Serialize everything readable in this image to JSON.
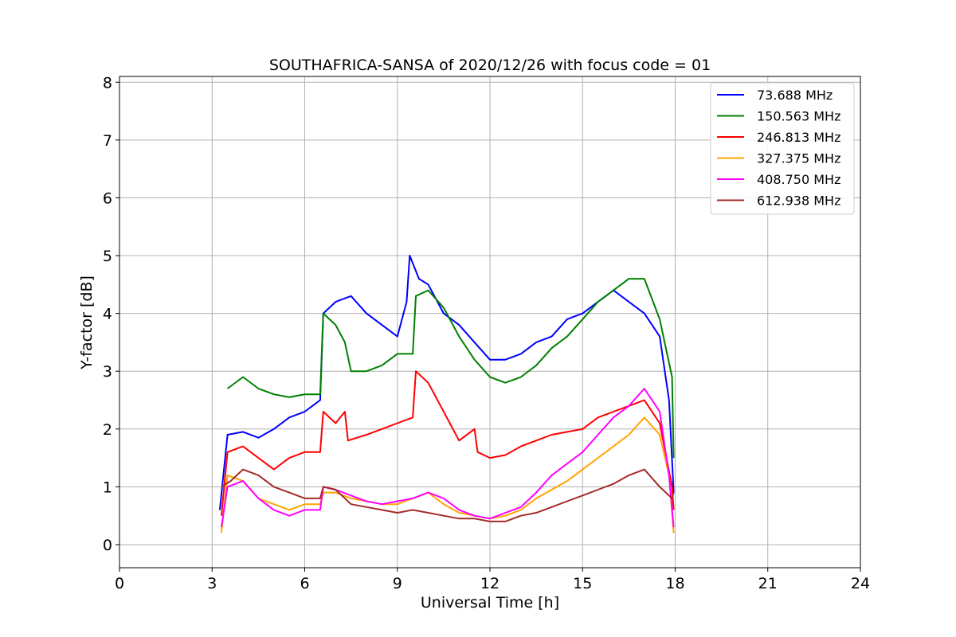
{
  "chart_data": {
    "type": "line",
    "title": "SOUTHAFRICA-SANSA of 2020/12/26 with focus code = 01",
    "xlabel": "Universal Time [h]",
    "ylabel": "Y-factor [dB]",
    "xlim": [
      0,
      24
    ],
    "ylim": [
      -0.4,
      8.1
    ],
    "xticks": [
      0,
      3,
      6,
      9,
      12,
      15,
      18,
      21,
      24
    ],
    "yticks": [
      0,
      1,
      2,
      3,
      4,
      5,
      6,
      7,
      8
    ],
    "grid": true,
    "legend_position": "top-right",
    "series": [
      {
        "name": "73.688 MHz",
        "color": "#0000ff",
        "points": [
          [
            3.25,
            0.6
          ],
          [
            3.5,
            1.9
          ],
          [
            4.0,
            1.95
          ],
          [
            4.5,
            1.85
          ],
          [
            5.0,
            2.0
          ],
          [
            5.5,
            2.2
          ],
          [
            6.0,
            2.3
          ],
          [
            6.5,
            2.5
          ],
          [
            6.6,
            4.0
          ],
          [
            7.0,
            4.2
          ],
          [
            7.5,
            4.3
          ],
          [
            8.0,
            4.0
          ],
          [
            8.5,
            3.8
          ],
          [
            9.0,
            3.6
          ],
          [
            9.3,
            4.2
          ],
          [
            9.4,
            5.0
          ],
          [
            9.7,
            4.6
          ],
          [
            10.0,
            4.5
          ],
          [
            10.5,
            4.0
          ],
          [
            11.0,
            3.8
          ],
          [
            11.5,
            3.5
          ],
          [
            12.0,
            3.2
          ],
          [
            12.5,
            3.2
          ],
          [
            13.0,
            3.3
          ],
          [
            13.5,
            3.5
          ],
          [
            14.0,
            3.6
          ],
          [
            14.5,
            3.9
          ],
          [
            15.0,
            4.0
          ],
          [
            15.5,
            4.2
          ],
          [
            16.0,
            4.4
          ],
          [
            16.5,
            4.2
          ],
          [
            17.0,
            4.0
          ],
          [
            17.5,
            3.6
          ],
          [
            17.8,
            2.5
          ],
          [
            17.95,
            0.9
          ]
        ]
      },
      {
        "name": "150.563 MHz",
        "color": "#008000",
        "points": [
          [
            3.5,
            2.7
          ],
          [
            4.0,
            2.9
          ],
          [
            4.5,
            2.7
          ],
          [
            5.0,
            2.6
          ],
          [
            5.5,
            2.55
          ],
          [
            6.0,
            2.6
          ],
          [
            6.5,
            2.6
          ],
          [
            6.6,
            4.0
          ],
          [
            7.0,
            3.8
          ],
          [
            7.3,
            3.5
          ],
          [
            7.5,
            3.0
          ],
          [
            8.0,
            3.0
          ],
          [
            8.5,
            3.1
          ],
          [
            9.0,
            3.3
          ],
          [
            9.5,
            3.3
          ],
          [
            9.6,
            4.3
          ],
          [
            10.0,
            4.4
          ],
          [
            10.5,
            4.1
          ],
          [
            11.0,
            3.6
          ],
          [
            11.5,
            3.2
          ],
          [
            12.0,
            2.9
          ],
          [
            12.5,
            2.8
          ],
          [
            13.0,
            2.9
          ],
          [
            13.5,
            3.1
          ],
          [
            14.0,
            3.4
          ],
          [
            14.5,
            3.6
          ],
          [
            15.0,
            3.9
          ],
          [
            15.5,
            4.2
          ],
          [
            16.0,
            4.4
          ],
          [
            16.5,
            4.6
          ],
          [
            17.0,
            4.6
          ],
          [
            17.5,
            3.9
          ],
          [
            17.9,
            2.9
          ],
          [
            17.95,
            1.5
          ]
        ]
      },
      {
        "name": "246.813 MHz",
        "color": "#ff0000",
        "points": [
          [
            3.3,
            0.5
          ],
          [
            3.5,
            1.6
          ],
          [
            4.0,
            1.7
          ],
          [
            4.5,
            1.5
          ],
          [
            5.0,
            1.3
          ],
          [
            5.5,
            1.5
          ],
          [
            6.0,
            1.6
          ],
          [
            6.5,
            1.6
          ],
          [
            6.6,
            2.3
          ],
          [
            7.0,
            2.1
          ],
          [
            7.3,
            2.3
          ],
          [
            7.4,
            1.8
          ],
          [
            8.0,
            1.9
          ],
          [
            8.5,
            2.0
          ],
          [
            9.0,
            2.1
          ],
          [
            9.5,
            2.2
          ],
          [
            9.6,
            3.0
          ],
          [
            10.0,
            2.8
          ],
          [
            10.5,
            2.3
          ],
          [
            11.0,
            1.8
          ],
          [
            11.5,
            2.0
          ],
          [
            11.6,
            1.6
          ],
          [
            12.0,
            1.5
          ],
          [
            12.5,
            1.55
          ],
          [
            13.0,
            1.7
          ],
          [
            13.5,
            1.8
          ],
          [
            14.0,
            1.9
          ],
          [
            14.5,
            1.95
          ],
          [
            15.0,
            2.0
          ],
          [
            15.5,
            2.2
          ],
          [
            16.0,
            2.3
          ],
          [
            16.5,
            2.4
          ],
          [
            17.0,
            2.5
          ],
          [
            17.5,
            2.1
          ],
          [
            17.9,
            1.0
          ],
          [
            17.95,
            0.6
          ]
        ]
      },
      {
        "name": "327.375 MHz",
        "color": "#ffa500",
        "points": [
          [
            3.3,
            0.2
          ],
          [
            3.5,
            1.2
          ],
          [
            4.0,
            1.1
          ],
          [
            4.5,
            0.8
          ],
          [
            5.0,
            0.7
          ],
          [
            5.5,
            0.6
          ],
          [
            6.0,
            0.7
          ],
          [
            6.5,
            0.7
          ],
          [
            6.6,
            0.9
          ],
          [
            7.0,
            0.9
          ],
          [
            7.5,
            0.8
          ],
          [
            8.0,
            0.75
          ],
          [
            8.5,
            0.7
          ],
          [
            9.0,
            0.7
          ],
          [
            9.5,
            0.8
          ],
          [
            10.0,
            0.9
          ],
          [
            10.5,
            0.7
          ],
          [
            11.0,
            0.55
          ],
          [
            11.5,
            0.5
          ],
          [
            12.0,
            0.45
          ],
          [
            12.5,
            0.5
          ],
          [
            13.0,
            0.6
          ],
          [
            13.5,
            0.8
          ],
          [
            14.0,
            0.95
          ],
          [
            14.5,
            1.1
          ],
          [
            15.0,
            1.3
          ],
          [
            15.5,
            1.5
          ],
          [
            16.0,
            1.7
          ],
          [
            16.5,
            1.9
          ],
          [
            17.0,
            2.2
          ],
          [
            17.5,
            1.9
          ],
          [
            17.8,
            1.2
          ],
          [
            17.95,
            0.2
          ]
        ]
      },
      {
        "name": "408.750 MHz",
        "color": "#ff00ff",
        "points": [
          [
            3.3,
            0.3
          ],
          [
            3.5,
            1.0
          ],
          [
            4.0,
            1.1
          ],
          [
            4.5,
            0.8
          ],
          [
            5.0,
            0.6
          ],
          [
            5.5,
            0.5
          ],
          [
            6.0,
            0.6
          ],
          [
            6.5,
            0.6
          ],
          [
            6.6,
            1.0
          ],
          [
            7.0,
            0.95
          ],
          [
            7.5,
            0.85
          ],
          [
            8.0,
            0.75
          ],
          [
            8.5,
            0.7
          ],
          [
            9.0,
            0.75
          ],
          [
            9.5,
            0.8
          ],
          [
            10.0,
            0.9
          ],
          [
            10.5,
            0.8
          ],
          [
            11.0,
            0.6
          ],
          [
            11.5,
            0.5
          ],
          [
            12.0,
            0.45
          ],
          [
            12.5,
            0.55
          ],
          [
            13.0,
            0.65
          ],
          [
            13.5,
            0.9
          ],
          [
            14.0,
            1.2
          ],
          [
            14.5,
            1.4
          ],
          [
            15.0,
            1.6
          ],
          [
            15.5,
            1.9
          ],
          [
            16.0,
            2.2
          ],
          [
            16.5,
            2.4
          ],
          [
            17.0,
            2.7
          ],
          [
            17.5,
            2.3
          ],
          [
            17.8,
            1.2
          ],
          [
            17.95,
            0.3
          ]
        ]
      },
      {
        "name": "612.938 MHz",
        "color": "#a52a2a",
        "points": [
          [
            3.3,
            1.0
          ],
          [
            3.6,
            1.1
          ],
          [
            4.0,
            1.3
          ],
          [
            4.5,
            1.2
          ],
          [
            5.0,
            1.0
          ],
          [
            5.5,
            0.9
          ],
          [
            6.0,
            0.8
          ],
          [
            6.5,
            0.8
          ],
          [
            6.6,
            1.0
          ],
          [
            7.0,
            0.95
          ],
          [
            7.5,
            0.7
          ],
          [
            8.0,
            0.65
          ],
          [
            8.5,
            0.6
          ],
          [
            9.0,
            0.55
          ],
          [
            9.5,
            0.6
          ],
          [
            10.0,
            0.55
          ],
          [
            10.5,
            0.5
          ],
          [
            11.0,
            0.45
          ],
          [
            11.5,
            0.45
          ],
          [
            12.0,
            0.4
          ],
          [
            12.5,
            0.4
          ],
          [
            13.0,
            0.5
          ],
          [
            13.5,
            0.55
          ],
          [
            14.0,
            0.65
          ],
          [
            14.5,
            0.75
          ],
          [
            15.0,
            0.85
          ],
          [
            15.5,
            0.95
          ],
          [
            16.0,
            1.05
          ],
          [
            16.5,
            1.2
          ],
          [
            17.0,
            1.3
          ],
          [
            17.5,
            1.0
          ],
          [
            17.9,
            0.8
          ],
          [
            17.95,
            0.9
          ]
        ]
      }
    ]
  }
}
